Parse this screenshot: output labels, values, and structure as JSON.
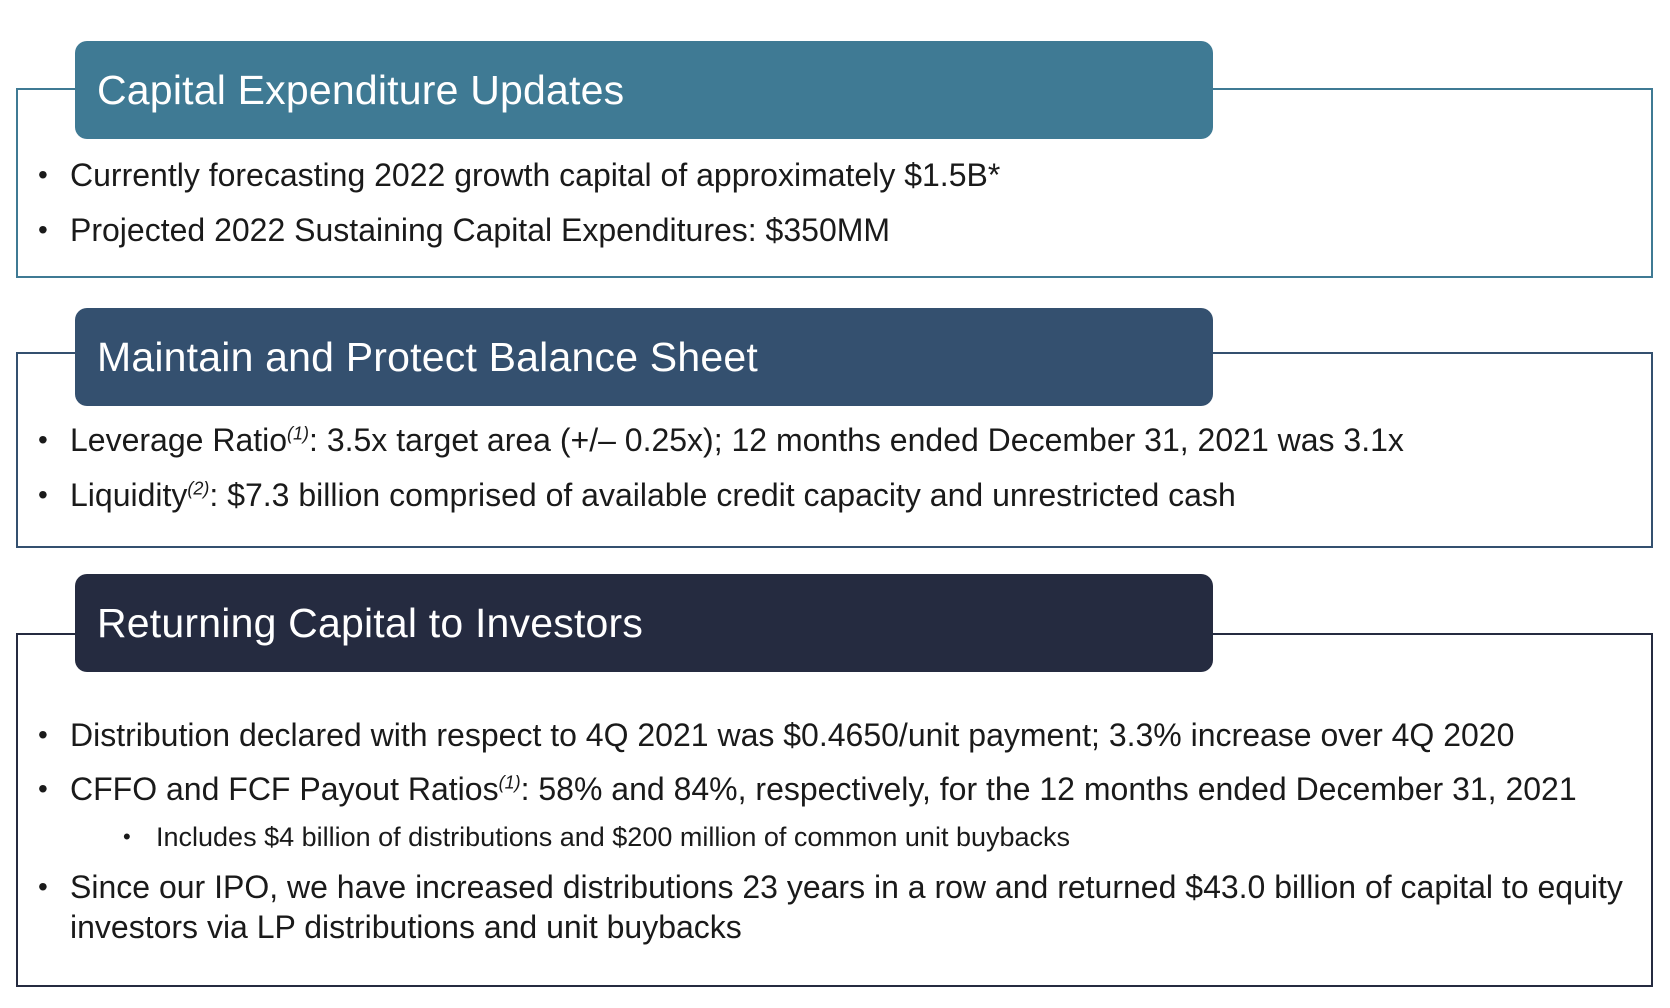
{
  "sections": [
    {
      "title": "Capital Expenditure Updates",
      "color": "#3f7a94",
      "bullets": [
        {
          "text": "Currently forecasting 2022 growth capital of approximately $1.5B*"
        },
        {
          "text": "Projected 2022 Sustaining Capital Expenditures:  $350MM"
        }
      ]
    },
    {
      "title": "Maintain and Protect Balance Sheet",
      "color": "#34506f",
      "bullets": [
        {
          "pre": "Leverage Ratio",
          "footnote": "(1)",
          "post": ":  3.5x target area (+/– 0.25x); 12 months ended December 31, 2021 was 3.1x"
        },
        {
          "pre": "Liquidity",
          "footnote": "(2)",
          "post": ":  $7.3 billion comprised of available credit capacity and unrestricted cash"
        }
      ]
    },
    {
      "title": "Returning Capital to Investors",
      "color": "#252b40",
      "bullets": [
        {
          "text": "Distribution declared with respect to 4Q 2021 was $0.4650/unit payment; 3.3% increase over 4Q 2020"
        },
        {
          "pre": "CFFO and FCF Payout Ratios",
          "footnote": "(1)",
          "post": ":  58% and 84%, respectively, for the 12 months ended December 31, 2021"
        },
        {
          "sub": "Includes $4 billion of distributions and $200 million of common unit buybacks"
        },
        {
          "text": "Since our IPO, we have increased distributions 23 years in a row and returned $43.0 billion of capital to equity investors via LP distributions and unit buybacks"
        }
      ]
    }
  ]
}
